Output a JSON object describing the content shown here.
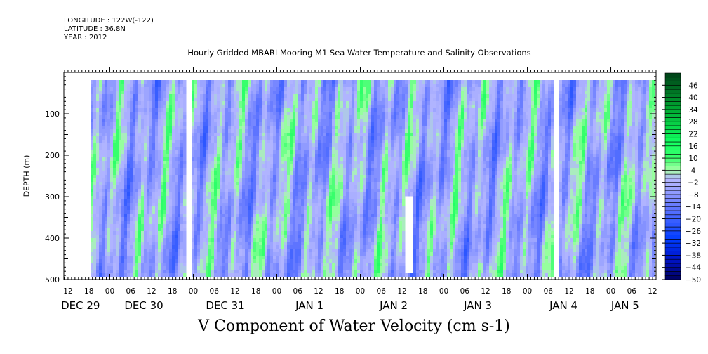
{
  "header": {
    "longitude": "LONGITUDE : 122W(-122)",
    "latitude": "LATITUDE : 36.8N",
    "year": "YEAR : 2012"
  },
  "chart_data": {
    "type": "heatmap",
    "title": "Hourly Gridded MBARI Mooring M1 Sea Water Temperature and Salinity Observations",
    "xlabel": "V Component of Water Velocity (cm s-1)",
    "ylabel": "DEPTH (m)",
    "x_units": "hours since DEC 28 12:00",
    "xlim": [
      -1.2,
      169
    ],
    "ylim": [
      500,
      0
    ],
    "y_ticks": [
      100,
      200,
      300,
      400,
      500
    ],
    "x_tick_labels": [
      "12",
      "18",
      "00",
      "06",
      "12",
      "18",
      "00",
      "06",
      "12",
      "18",
      "00",
      "06",
      "12",
      "18",
      "00",
      "06",
      "12",
      "18",
      "00",
      "06",
      "12",
      "18",
      "00",
      "06",
      "12",
      "18",
      "00",
      "06",
      "12"
    ],
    "x_tick_hours": [
      0,
      6,
      12,
      18,
      24,
      30,
      36,
      42,
      48,
      54,
      60,
      66,
      72,
      78,
      84,
      90,
      96,
      102,
      108,
      114,
      120,
      126,
      132,
      138,
      144,
      150,
      156,
      162,
      168
    ],
    "date_labels": [
      "DEC 29",
      "DEC 30",
      "DEC 31",
      "JAN  1",
      "JAN  2",
      "JAN  3",
      "JAN  4",
      "JAN  5"
    ],
    "data_extent": {
      "x": [
        6.5,
        168
      ],
      "depth": [
        18,
        487
      ]
    },
    "missing_data": [
      {
        "x": [
          33.9,
          35.9
        ],
        "depth": [
          0,
          500
        ]
      },
      {
        "x": [
          139.4,
          141.2
        ],
        "depth": [
          0,
          500
        ]
      },
      {
        "x": [
          97.2,
          99.2
        ],
        "depth": [
          300,
          487
        ]
      }
    ],
    "value_range_typical": [
      -20,
      16
    ],
    "colorbar": {
      "levels_min": -50,
      "levels_max": 52,
      "step": 2,
      "tick_labels": [
        "46",
        "40",
        "34",
        "28",
        "22",
        "16",
        "10",
        "4",
        "-2",
        "-8",
        "-14",
        "-20",
        "-26",
        "-32",
        "-38",
        "-44",
        "-50"
      ]
    },
    "colors": {
      "neg_max": "#000060",
      "neg_strong": "#0030ff",
      "neg_weak": "#b0b4ff",
      "pos_weak": "#a8ffa8",
      "pos_mid": "#10ff60",
      "pos_max": "#004018"
    }
  }
}
